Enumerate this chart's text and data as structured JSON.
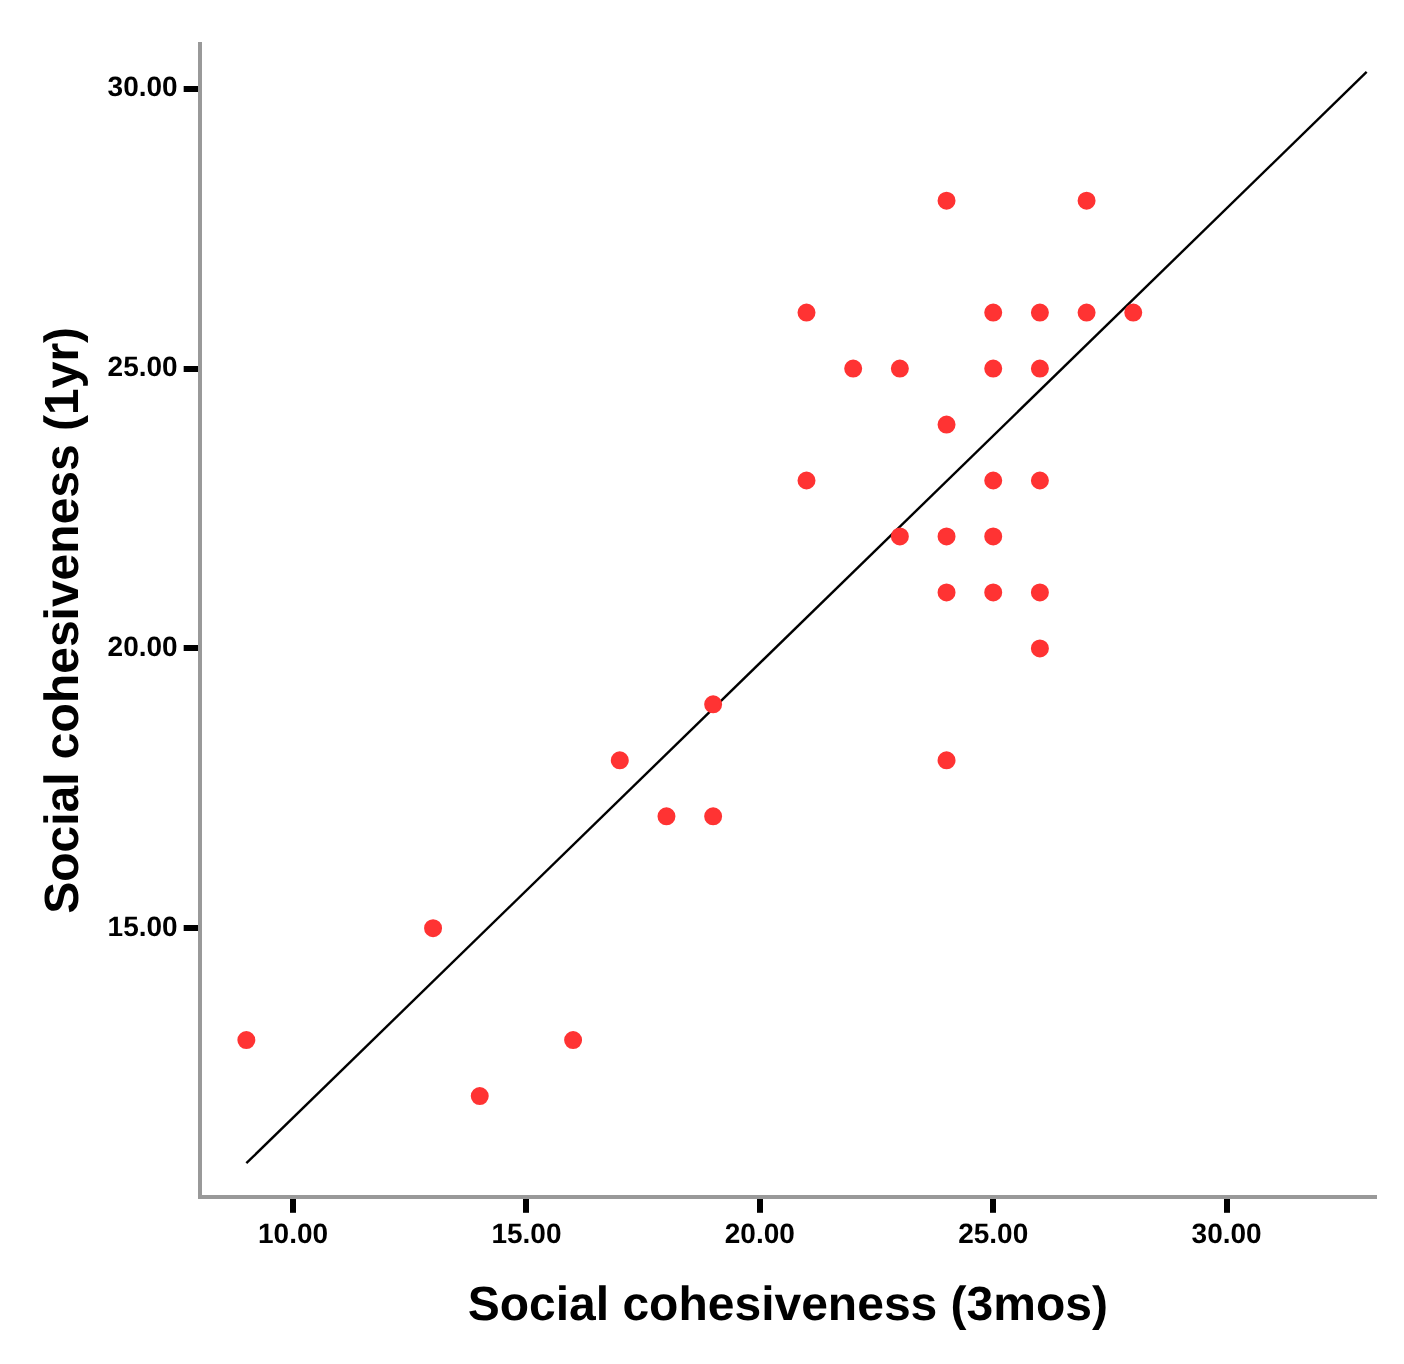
{
  "chart_data": {
    "type": "scatter",
    "xlabel": "Social cohesiveness (3mos)",
    "ylabel": "Social cohesiveness (1yr)",
    "xlim": [
      8,
      33.2
    ],
    "ylim": [
      10.2,
      30.8
    ],
    "xticks": [
      {
        "value": 10,
        "label": "10.00"
      },
      {
        "value": 15,
        "label": "15.00"
      },
      {
        "value": 20,
        "label": "20.00"
      },
      {
        "value": 25,
        "label": "25.00"
      },
      {
        "value": 30,
        "label": "30.00"
      }
    ],
    "yticks": [
      {
        "value": 15,
        "label": "15.00"
      },
      {
        "value": 20,
        "label": "20.00"
      },
      {
        "value": 25,
        "label": "25.00"
      },
      {
        "value": 30,
        "label": "30.00"
      }
    ],
    "grid": false,
    "legend": false,
    "series": [
      {
        "marker": "circle",
        "color": "#ff3333",
        "x": [
          24,
          27,
          21,
          25,
          26,
          27,
          28,
          22,
          23,
          25,
          26,
          24,
          21,
          25,
          26,
          23,
          24,
          25,
          24,
          25,
          26,
          26,
          19,
          17,
          24,
          18,
          19,
          13,
          9,
          16,
          14
        ],
        "values": [
          28,
          28,
          26,
          26,
          26,
          26,
          26,
          25,
          25,
          25,
          25,
          24,
          23,
          23,
          23,
          22,
          22,
          22,
          21,
          21,
          21,
          20,
          19,
          18,
          18,
          17,
          17,
          15,
          13,
          13,
          12
        ]
      },
      {
        "type": "line",
        "marker": "none",
        "color": "#000000",
        "x": [
          9,
          33
        ],
        "values": [
          10.8,
          30.3
        ]
      }
    ]
  }
}
